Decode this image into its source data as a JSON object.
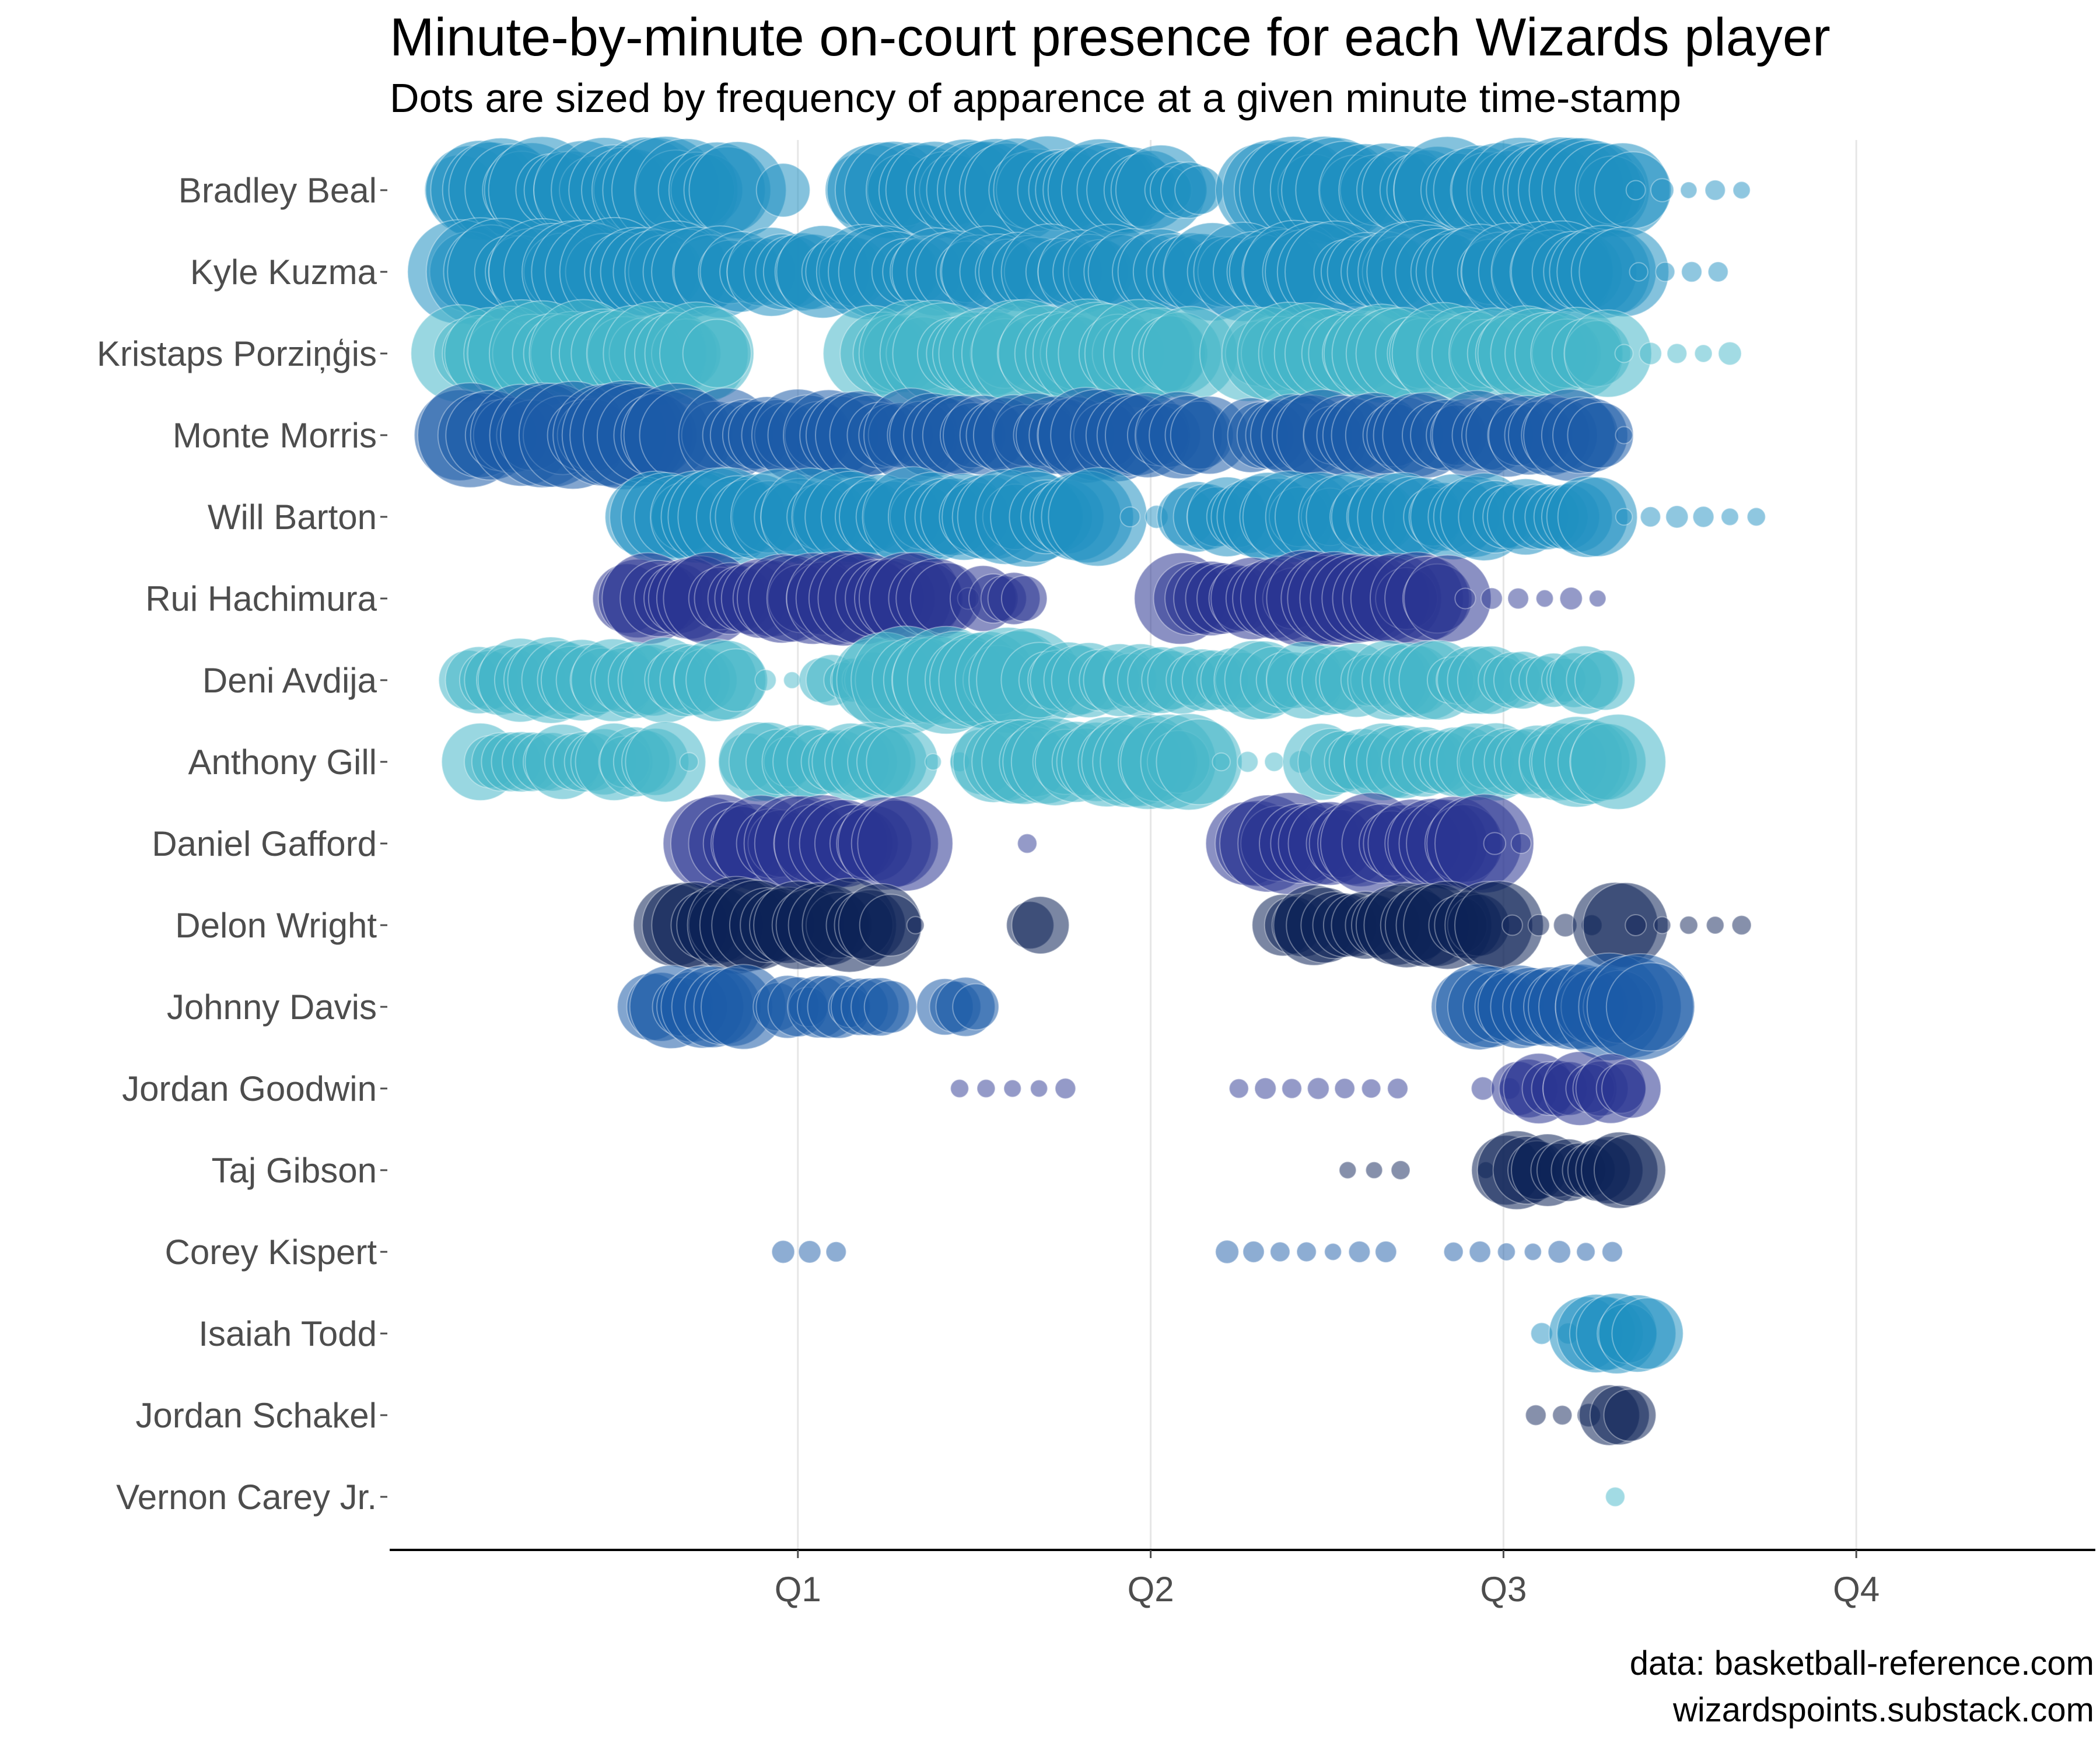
{
  "chart_data": {
    "type": "scatter",
    "title": "Minute-by-minute on-court presence for each Wizards player",
    "subtitle": "Dots are sized by frequency of apparence at a given minute time-stamp",
    "caption": [
      "data: basketball-reference.com",
      "wizardspoints.substack.com"
    ],
    "x_ticks": [
      "Q1",
      "Q2",
      "Q3",
      "Q4"
    ],
    "x_range": [
      0,
      48
    ],
    "grid": "vertical major lines at quarter ticks",
    "players": [
      {
        "name": "Bradley Beal",
        "color": "#1f8fc1",
        "segments": [
          [
            0.5,
            10.2,
            0.95
          ],
          [
            11.5,
            11.8,
            0.5
          ],
          [
            14.2,
            24.6,
            0.95
          ],
          [
            24.6,
            25.8,
            0.6
          ],
          [
            27.8,
            40.4,
            0.95
          ],
          [
            40.5,
            44.8,
            0.25
          ]
        ]
      },
      {
        "name": "Kyle Kuzma",
        "color": "#1f8fc1",
        "segments": [
          [
            0.5,
            8.6,
            0.95
          ],
          [
            9.0,
            23.6,
            0.85
          ],
          [
            24.0,
            40.3,
            0.9
          ],
          [
            40.6,
            44.0,
            0.25
          ]
        ]
      },
      {
        "name": "Kristaps Porzingis",
        "color": "#46b7c9",
        "segments": [
          [
            0.5,
            9.5,
            0.95
          ],
          [
            14.5,
            25.5,
            0.95
          ],
          [
            27.3,
            39.7,
            0.9
          ],
          [
            40.1,
            43.9,
            0.25
          ]
        ]
      },
      {
        "name": "Monte Morris",
        "color": "#1c5ba8",
        "segments": [
          [
            0.5,
            8.4,
            0.95
          ],
          [
            9.2,
            26.2,
            0.85
          ],
          [
            27.4,
            39.4,
            0.8
          ],
          [
            40.1,
            40.1,
            0.25
          ]
        ]
      },
      {
        "name": "Will Barton",
        "color": "#1f8fc1",
        "segments": [
          [
            6.8,
            22.3,
            0.9
          ],
          [
            23.3,
            24.8,
            0.3
          ],
          [
            25.2,
            39.2,
            0.8
          ],
          [
            40.1,
            44.9,
            0.25
          ]
        ]
      },
      {
        "name": "Rui Hachimura",
        "color": "#2a3592",
        "segments": [
          [
            6.2,
            17.3,
            0.85
          ],
          [
            17.8,
            18.3,
            0.3
          ],
          [
            18.3,
            19.7,
            0.6
          ],
          [
            25.0,
            34.2,
            0.85
          ],
          [
            34.7,
            39.9,
            0.25
          ]
        ]
      },
      {
        "name": "Deni Avdija",
        "color": "#46b7c9",
        "segments": [
          [
            0.8,
            10.2,
            0.8
          ],
          [
            10.9,
            11.9,
            0.3
          ],
          [
            12.8,
            14.6,
            0.5
          ],
          [
            14.6,
            20.5,
            0.95
          ],
          [
            20.5,
            33.8,
            0.7
          ],
          [
            34.2,
            39.7,
            0.6
          ]
        ]
      },
      {
        "name": "Anthony Gill",
        "color": "#46b7c9",
        "segments": [
          [
            1.2,
            7.5,
            0.7
          ],
          [
            8.3,
            8.3,
            0.25
          ],
          [
            10.3,
            15.8,
            0.7
          ],
          [
            16.6,
            17.5,
            0.25
          ],
          [
            18.3,
            25.8,
            0.85
          ],
          [
            26.4,
            29.8,
            0.3
          ],
          [
            29.8,
            38.5,
            0.7
          ],
          [
            38.5,
            40.1,
            0.9
          ]
        ]
      },
      {
        "name": "Daniel Gafford",
        "color": "#2a3592",
        "segments": [
          [
            9.0,
            15.7,
            0.9
          ],
          [
            19.8,
            19.8,
            0.25
          ],
          [
            27.3,
            35.4,
            0.9
          ],
          [
            35.7,
            36.6,
            0.25
          ]
        ]
      },
      {
        "name": "Delon Wright",
        "color": "#0d2257",
        "segments": [
          [
            7.8,
            15.3,
            0.85
          ],
          [
            16.0,
            16.0,
            0.25
          ],
          [
            19.9,
            20.3,
            0.6
          ],
          [
            28.5,
            35.9,
            0.8
          ],
          [
            36.3,
            39.8,
            0.3
          ],
          [
            39.8,
            40.3,
            0.75
          ],
          [
            40.5,
            44.6,
            0.25
          ]
        ]
      },
      {
        "name": "Johnny Davis",
        "color": "#1c5ba8",
        "segments": [
          [
            7.0,
            10.2,
            0.75
          ],
          [
            11.3,
            15.4,
            0.55
          ],
          [
            17.0,
            18.3,
            0.55
          ],
          [
            34.8,
            39.6,
            0.75
          ],
          [
            39.6,
            41.2,
            1.0
          ]
        ]
      },
      {
        "name": "Jordan Goodwin",
        "color": "#2a3592",
        "segments": [
          [
            17.5,
            21.5,
            0.25
          ],
          [
            27.0,
            32.8,
            0.25
          ],
          [
            35.3,
            36.2,
            0.25
          ],
          [
            36.5,
            40.4,
            0.65
          ]
        ]
      },
      {
        "name": "Taj Gibson",
        "color": "#0d2257",
        "segments": [
          [
            30.7,
            32.5,
            0.25
          ],
          [
            35.4,
            35.4,
            0.25
          ],
          [
            36.1,
            40.4,
            0.7
          ]
        ]
      },
      {
        "name": "Corey Kispert",
        "color": "#1c5ba8",
        "segments": [
          [
            11.5,
            13.7,
            0.25
          ],
          [
            26.6,
            32.0,
            0.25
          ],
          [
            34.3,
            40.2,
            0.25
          ]
        ]
      },
      {
        "name": "Isaiah Todd",
        "color": "#1f8fc1",
        "segments": [
          [
            37.3,
            38.2,
            0.25
          ],
          [
            38.8,
            41.0,
            0.7
          ]
        ]
      },
      {
        "name": "Jordan Schakel",
        "color": "#0d2257",
        "segments": [
          [
            37.1,
            39.6,
            0.25
          ],
          [
            39.6,
            40.4,
            0.55
          ]
        ]
      },
      {
        "name": "Vernon Carey Jr.",
        "color": "#46b7c9",
        "segments": [
          [
            39.8,
            39.8,
            0.25
          ]
        ]
      }
    ]
  },
  "labels": {
    "players": [
      "Bradley Beal",
      "Kyle Kuzma",
      "Kristaps Porziņģis",
      "Monte Morris",
      "Will Barton",
      "Rui Hachimura",
      "Deni Avdija",
      "Anthony Gill",
      "Daniel Gafford",
      "Delon Wright",
      "Johnny Davis",
      "Jordan Goodwin",
      "Taj Gibson",
      "Corey Kispert",
      "Isaiah Todd",
      "Jordan Schakel",
      "Vernon Carey Jr."
    ]
  }
}
